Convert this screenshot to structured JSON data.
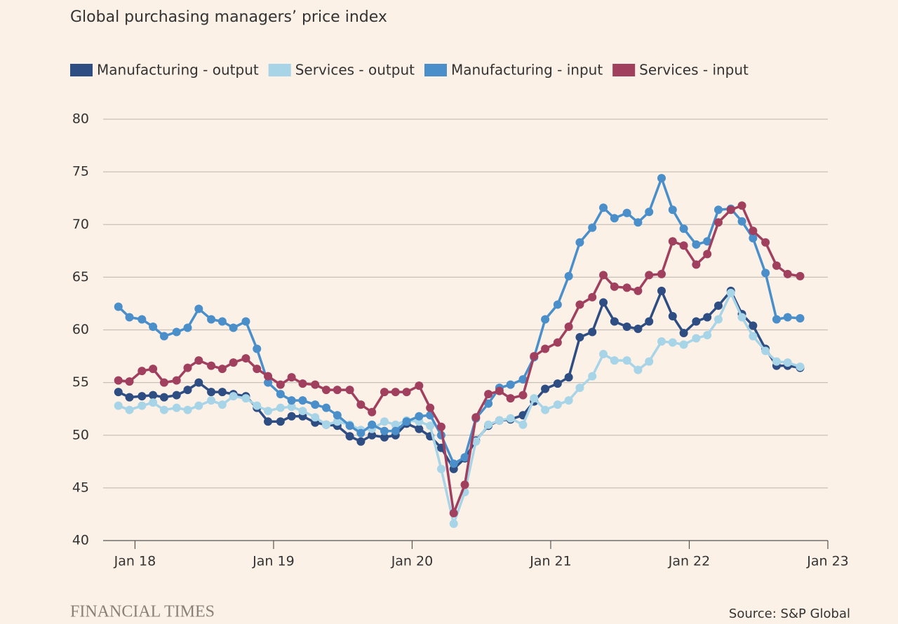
{
  "chart_data": {
    "type": "line",
    "title": "Global purchasing managers’ price index",
    "brand": "FINANCIAL TIMES",
    "source": "Source: S&P Global",
    "x": [
      2017.88,
      2017.96,
      2018.05,
      2018.13,
      2018.21,
      2018.3,
      2018.38,
      2018.46,
      2018.55,
      2018.63,
      2018.71,
      2018.8,
      2018.88,
      2018.96,
      2019.05,
      2019.13,
      2019.21,
      2019.3,
      2019.38,
      2019.46,
      2019.55,
      2019.63,
      2019.71,
      2019.8,
      2019.88,
      2019.96,
      2020.05,
      2020.13,
      2020.21,
      2020.3,
      2020.38,
      2020.46,
      2020.55,
      2020.63,
      2020.71,
      2020.8,
      2020.88,
      2020.96,
      2021.05,
      2021.13,
      2021.21,
      2021.3,
      2021.38,
      2021.46,
      2021.55,
      2021.63,
      2021.71,
      2021.8,
      2021.88,
      2021.96,
      2022.05,
      2022.13,
      2022.21,
      2022.3,
      2022.38,
      2022.46,
      2022.55,
      2022.63,
      2022.71,
      2022.8
    ],
    "series": [
      {
        "name": "Manufacturing - output",
        "color": "#2e4d82",
        "values": [
          54.1,
          53.6,
          53.7,
          53.8,
          53.6,
          53.8,
          54.3,
          55.0,
          54.1,
          54.1,
          53.9,
          53.7,
          52.6,
          51.3,
          51.3,
          51.8,
          51.8,
          51.2,
          51.0,
          50.9,
          49.9,
          49.4,
          50.0,
          49.8,
          50.0,
          51.1,
          50.6,
          49.9,
          48.8,
          46.8,
          47.8,
          49.5,
          50.9,
          51.4,
          51.5,
          51.9,
          53.2,
          54.4,
          54.9,
          55.5,
          59.3,
          59.8,
          62.6,
          60.8,
          60.3,
          60.1,
          60.8,
          63.7,
          61.3,
          59.7,
          60.8,
          61.2,
          62.3,
          63.7,
          61.5,
          60.4,
          58.2,
          56.6,
          56.6,
          56.4
        ]
      },
      {
        "name": "Services - output",
        "color": "#a8d4e8",
        "values": [
          52.8,
          52.4,
          52.8,
          53.1,
          52.4,
          52.6,
          52.4,
          52.8,
          53.3,
          52.9,
          53.7,
          53.5,
          52.8,
          52.3,
          52.6,
          52.7,
          52.3,
          51.7,
          51.0,
          51.3,
          51.0,
          50.5,
          50.6,
          51.3,
          51.0,
          51.4,
          51.3,
          50.9,
          46.8,
          41.6,
          44.6,
          49.4,
          51.0,
          51.4,
          51.6,
          51.0,
          53.5,
          52.4,
          52.9,
          53.3,
          54.5,
          55.6,
          57.7,
          57.1,
          57.1,
          56.2,
          57.0,
          58.9,
          58.8,
          58.6,
          59.2,
          59.5,
          61.0,
          63.5,
          61.2,
          59.4,
          58.0,
          57.0,
          56.9,
          56.5
        ]
      },
      {
        "name": "Manufacturing - input",
        "color": "#4a8fc9",
        "values": [
          62.2,
          61.2,
          61.0,
          60.3,
          59.4,
          59.8,
          60.2,
          62.0,
          61.0,
          60.8,
          60.2,
          60.8,
          58.2,
          55.0,
          53.9,
          53.3,
          53.3,
          52.9,
          52.6,
          51.9,
          50.9,
          50.2,
          51.0,
          50.4,
          50.4,
          51.3,
          51.8,
          51.9,
          50.0,
          47.3,
          47.9,
          51.6,
          53.0,
          54.5,
          54.8,
          55.3,
          57.4,
          61.0,
          62.4,
          65.1,
          68.3,
          69.7,
          71.6,
          70.6,
          71.1,
          70.2,
          71.2,
          74.4,
          71.4,
          69.6,
          68.1,
          68.4,
          71.4,
          71.5,
          70.3,
          68.7,
          65.4,
          61.0,
          61.2,
          61.1
        ]
      },
      {
        "name": "Services - input",
        "color": "#a13f5f",
        "values": [
          55.2,
          55.1,
          56.1,
          56.3,
          55.0,
          55.2,
          56.4,
          57.1,
          56.6,
          56.3,
          56.9,
          57.3,
          56.3,
          55.6,
          54.8,
          55.5,
          54.9,
          54.8,
          54.3,
          54.3,
          54.3,
          52.9,
          52.2,
          54.1,
          54.1,
          54.1,
          54.7,
          52.6,
          50.8,
          42.6,
          45.3,
          51.7,
          53.9,
          54.2,
          53.5,
          53.8,
          57.5,
          58.2,
          58.8,
          60.3,
          62.4,
          63.1,
          65.2,
          64.1,
          64.0,
          63.7,
          65.2,
          65.3,
          68.4,
          68.0,
          66.2,
          67.2,
          70.2,
          71.4,
          71.8,
          69.4,
          68.3,
          66.1,
          65.3,
          65.1
        ]
      }
    ],
    "xlim": [
      2017.77,
      2023
    ],
    "xticks": [
      {
        "value": 2018,
        "label": "Jan 18"
      },
      {
        "value": 2019,
        "label": "Jan 19"
      },
      {
        "value": 2020,
        "label": "Jan 20"
      },
      {
        "value": 2021,
        "label": "Jan 21"
      },
      {
        "value": 2022,
        "label": "Jan 22"
      },
      {
        "value": 2023,
        "label": "Jan 23"
      }
    ],
    "ylim": [
      40,
      80
    ],
    "yticks": [
      40,
      45,
      50,
      55,
      60,
      65,
      70,
      75,
      80
    ],
    "grid": true
  }
}
